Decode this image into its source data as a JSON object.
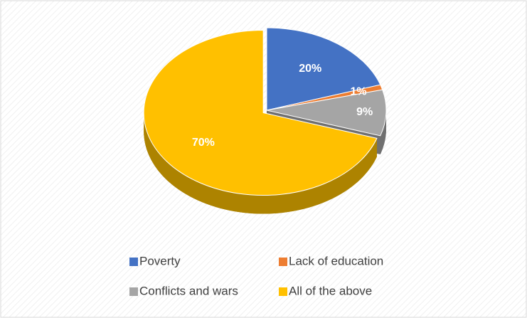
{
  "chart_data": {
    "type": "pie",
    "categories": [
      "Poverty",
      "Lack of education",
      "Conflicts and wars",
      "All of the above"
    ],
    "values": [
      20,
      1,
      9,
      70
    ],
    "value_labels": [
      "20%",
      "1%",
      "9%",
      "70%"
    ],
    "colors": [
      "#4472c4",
      "#ed7d31",
      "#a5a5a5",
      "#ffc000"
    ],
    "legend": "bottom"
  }
}
